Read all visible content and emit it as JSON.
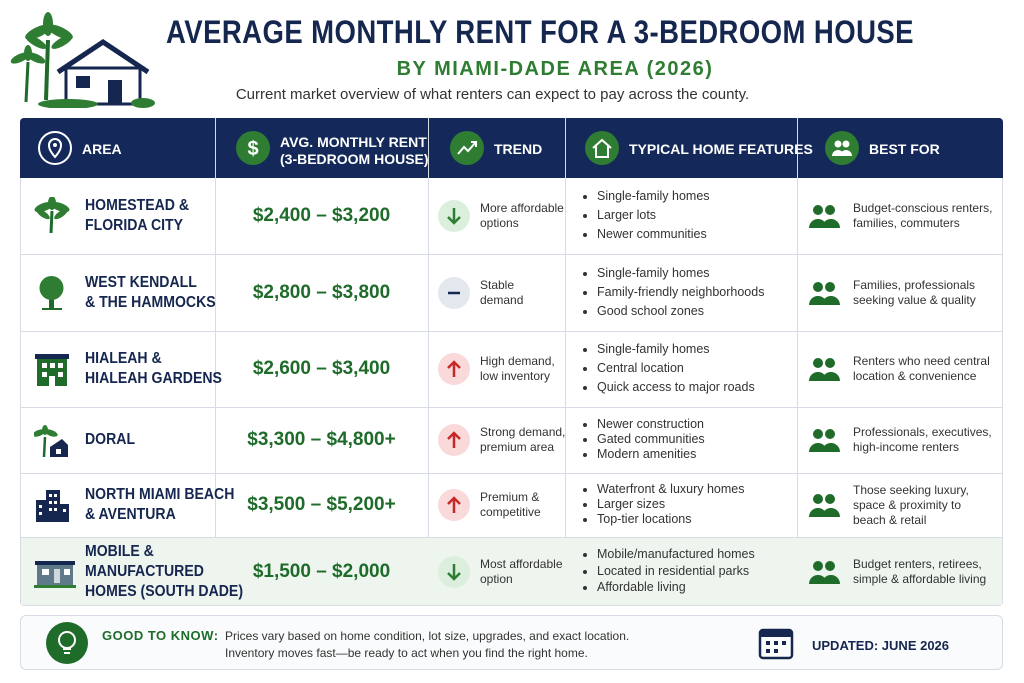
{
  "header": {
    "title": "AVERAGE MONTHLY RENT FOR A 3-BEDROOM HOUSE",
    "subtitle": "BY MIAMI-DADE AREA (2026)",
    "description": "Current market overview of what renters can expect to pay across the county."
  },
  "table": {
    "columns": [
      "AREA",
      [
        "AVG. MONTHLY RENT",
        "(3-BEDROOM HOUSE)"
      ],
      "TREND",
      "TYPICAL HOME FEATURES",
      "BEST FOR"
    ],
    "rows": [
      {
        "area": [
          "HOMESTEAD &",
          "FLORIDA CITY"
        ],
        "rent": "$2,400 – $3,200",
        "trend": [
          "More affordable",
          "options"
        ],
        "features": [
          "Single-family homes",
          "Larger lots",
          "Newer communities"
        ],
        "best_for": [
          "Budget-conscious renters,",
          "families, commuters"
        ]
      },
      {
        "area": [
          "WEST KENDALL",
          "& THE HAMMOCKS"
        ],
        "rent": "$2,800 – $3,800",
        "trend": [
          "Stable",
          "demand"
        ],
        "features": [
          "Single-family homes",
          "Family-friendly neighborhoods",
          "Good school zones"
        ],
        "best_for": [
          "Families, professionals",
          "seeking value & quality"
        ]
      },
      {
        "area": [
          "HIALEAH &",
          "HIALEAH GARDENS"
        ],
        "rent": "$2,600 – $3,400",
        "trend": [
          "High demand,",
          "low inventory"
        ],
        "features": [
          "Single-family homes",
          "Central location",
          "Quick access to major roads"
        ],
        "best_for": [
          "Renters who need central",
          "location & convenience"
        ]
      },
      {
        "area": [
          "DORAL"
        ],
        "rent": "$3,300 – $4,800+",
        "trend": [
          "Strong demand,",
          "premium area"
        ],
        "features": [
          "Newer construction",
          "Gated communities",
          "Modern amenities"
        ],
        "best_for": [
          "Professionals, executives,",
          "high-income renters"
        ]
      },
      {
        "area": [
          "NORTH MIAMI BEACH",
          "& AVENTURA"
        ],
        "rent": "$3,500 – $5,200+",
        "trend": [
          "Premium &",
          "competitive"
        ],
        "features": [
          "Waterfront & luxury homes",
          "Larger sizes",
          "Top-tier locations"
        ],
        "best_for": [
          "Those seeking luxury,",
          "space & proximity to",
          "beach & retail"
        ]
      },
      {
        "area": [
          "MOBILE &",
          "MANUFACTURED",
          "HOMES (SOUTH DADE)"
        ],
        "rent": "$1,500 – $2,000",
        "trend": [
          "Most affordable",
          "option"
        ],
        "features": [
          "Mobile/manufactured homes",
          "Located in residential parks",
          "Affordable living"
        ],
        "best_for": [
          "Budget renters, retirees,",
          "simple & affordable living"
        ]
      }
    ]
  },
  "footer": {
    "label": "GOOD TO KNOW:",
    "text": [
      "Prices vary based on home condition, lot size, upgrades, and exact location.",
      "Inventory moves fast—be ready to act when you find the right home."
    ],
    "updated": "UPDATED: JUNE 2026"
  }
}
